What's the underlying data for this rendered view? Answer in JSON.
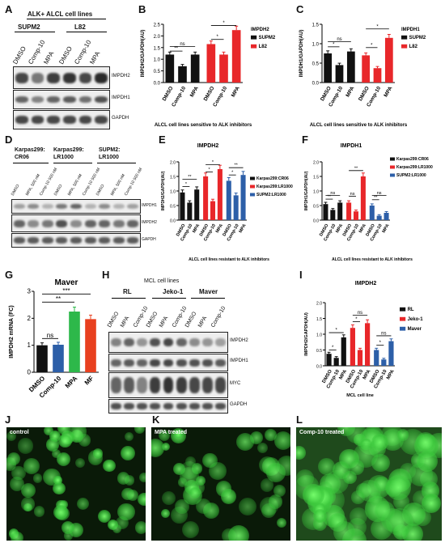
{
  "letters": {
    "A": "A",
    "B": "B",
    "C": "C",
    "D": "D",
    "E": "E",
    "F": "F",
    "G": "G",
    "H": "H",
    "I": "I",
    "J": "J",
    "K": "K",
    "L": "L"
  },
  "panelA": {
    "title": "ALK+ ALCL cell lines",
    "groups": [
      "SUPM2",
      "L82"
    ],
    "lanes": [
      "DMSO",
      "Comp-10",
      "MPA",
      "DMSO",
      "Comp-10",
      "MPA"
    ],
    "rows": [
      "IMPDH2",
      "IMPDH1",
      "GAPDH"
    ]
  },
  "panelD": {
    "groups": [
      "Karpas299:\nCR06",
      "Karpas299:\nLR1000",
      "SUPM2:\nLR1000"
    ],
    "lanes": [
      "DMSO",
      "MPA, 500 nM",
      "Comp-10 500 nM",
      "DMSO",
      "MPA, 500 nM",
      "Comp-10 500 nM",
      "DMSO",
      "MPA, 500 nM",
      "Comp-10 500 nM"
    ],
    "rows": [
      "IMPDH1",
      "IMPDH2",
      "GAPDH"
    ]
  },
  "panelH": {
    "title": "MCL cell lines",
    "groups": [
      "RL",
      "Jeko-1",
      "Maver"
    ],
    "lanes": [
      "DMSO",
      "MPA",
      "Comp-10",
      "DMSO",
      "MPA",
      "Comp-10",
      "DMSO",
      "MPA",
      "Comp-10"
    ],
    "rows": [
      "IMPDH2",
      "IMPDH1",
      "MYC",
      "GAPDH"
    ]
  },
  "panelJ": {
    "label": "control"
  },
  "panelK": {
    "label": "MPA treated"
  },
  "panelL": {
    "label": "Comp-10 treated"
  },
  "colors": {
    "black": "#111111",
    "red": "#e8272a",
    "blue": "#2d5fa8",
    "green": "#2db84a",
    "orange": "#e8401f"
  },
  "chart_data": [
    {
      "id": "B",
      "type": "bar",
      "title": "",
      "ylabel": "IMPDH2/GAPDH(AU)",
      "xlabel": "ALCL cell lines  sensitive to ALK inhibitors",
      "categories": [
        "DMSO",
        "Comp-10",
        "MPA",
        "DMSO",
        "Comp-10",
        "MPA"
      ],
      "values": [
        1.2,
        0.7,
        1.2,
        1.65,
        1.2,
        2.25
      ],
      "colors": [
        "#111111",
        "#111111",
        "#111111",
        "#e8272a",
        "#e8272a",
        "#e8272a"
      ],
      "ylim": [
        0,
        2.5
      ],
      "yticks": [
        0.0,
        0.5,
        1.0,
        1.5,
        2.0,
        2.5
      ],
      "legend": [
        "SUPM2",
        "L82"
      ],
      "legendTitle": "IMPDH2",
      "sig": [
        {
          "a": 0,
          "b": 1,
          "label": "**",
          "level": 1.35
        },
        {
          "a": 0,
          "b": 2,
          "label": "ns",
          "level": 1.55
        },
        {
          "a": 3,
          "b": 4,
          "label": "*",
          "level": 1.85
        },
        {
          "a": 3,
          "b": 5,
          "label": "*",
          "level": 2.45
        }
      ]
    },
    {
      "id": "C",
      "type": "bar",
      "title": "",
      "ylabel": "IMPDH1/GAPDH(AU)",
      "xlabel": "ALCL cell lines  sensitive to ALK inhibitors",
      "categories": [
        "DMSO",
        "Comp-10",
        "MPA",
        "DMSO",
        "Comp-10",
        "MPA"
      ],
      "values": [
        0.75,
        0.45,
        0.8,
        0.7,
        0.37,
        1.15
      ],
      "colors": [
        "#111111",
        "#111111",
        "#111111",
        "#e8272a",
        "#e8272a",
        "#e8272a"
      ],
      "ylim": [
        0,
        1.5
      ],
      "yticks": [
        0.0,
        0.5,
        1.0,
        1.5
      ],
      "legend": [
        "SUPM2",
        "L82"
      ],
      "legendTitle": "IMPDH1",
      "sig": [
        {
          "a": 0,
          "b": 1,
          "label": "*",
          "level": 0.92
        },
        {
          "a": 0,
          "b": 2,
          "label": "ns",
          "level": 1.05
        },
        {
          "a": 3,
          "b": 4,
          "label": "*",
          "level": 0.9
        },
        {
          "a": 3,
          "b": 5,
          "label": "*",
          "level": 1.38
        }
      ]
    },
    {
      "id": "E",
      "type": "bar",
      "title": "IMPDH2",
      "ylabel": "IMPDH2/GAPDH(AU)",
      "xlabel": "ALCL cell lines resistant to ALK inhibitors",
      "categories": [
        "DMSO",
        "Comp-10",
        "MPA",
        "DMSO",
        "Comp-10",
        "MPA",
        "DMSO",
        "Comp-10",
        "MPA"
      ],
      "values": [
        0.95,
        0.6,
        1.05,
        1.5,
        0.65,
        1.75,
        1.35,
        0.85,
        1.55
      ],
      "colors": [
        "#111111",
        "#111111",
        "#111111",
        "#e8272a",
        "#e8272a",
        "#e8272a",
        "#2d5fa8",
        "#2d5fa8",
        "#2d5fa8"
      ],
      "ylim": [
        0,
        2.0
      ],
      "yticks": [
        0.0,
        0.5,
        1.0,
        1.5,
        2.0
      ],
      "legend": [
        "Karpas299:CR06",
        "Karpas299:LR1000",
        "SUPM2:LR1000"
      ],
      "sig": [
        {
          "a": 0,
          "b": 1,
          "label": "*",
          "level": 1.15
        },
        {
          "a": 0,
          "b": 2,
          "label": "**",
          "level": 1.4
        },
        {
          "a": 3,
          "b": 4,
          "label": "*",
          "level": 1.65
        },
        {
          "a": 3,
          "b": 5,
          "label": "*",
          "level": 1.9
        },
        {
          "a": 6,
          "b": 7,
          "label": "*",
          "level": 1.55
        },
        {
          "a": 6,
          "b": 8,
          "label": "**",
          "level": 1.8
        }
      ]
    },
    {
      "id": "F",
      "type": "bar",
      "title": "IMPDH1",
      "ylabel": "IMPDH1/GAPDH(AU)",
      "xlabel": "ALCL cell lines resistant to ALK inhibitors",
      "categories": [
        "DMSO",
        "Comp-10",
        "MPA",
        "DMSO",
        "Comp-10",
        "MPA",
        "DMSO",
        "Comp-10",
        "MPA"
      ],
      "values": [
        0.55,
        0.35,
        0.6,
        0.6,
        0.3,
        1.5,
        0.5,
        0.15,
        0.25
      ],
      "colors": [
        "#111111",
        "#111111",
        "#111111",
        "#e8272a",
        "#e8272a",
        "#e8272a",
        "#2d5fa8",
        "#2d5fa8",
        "#2d5fa8"
      ],
      "ylim": [
        0,
        2.0
      ],
      "yticks": [
        0.0,
        0.5,
        1.0,
        1.5,
        2.0
      ],
      "legend": [
        "Karpas299:CR06",
        "Karpas299:LR1000",
        "SUPM2:LR1000"
      ],
      "sig": [
        {
          "a": 0,
          "b": 1,
          "label": "**",
          "level": 0.72
        },
        {
          "a": 0,
          "b": 2,
          "label": "ns",
          "level": 0.85
        },
        {
          "a": 3,
          "b": 4,
          "label": "ns",
          "level": 0.82
        },
        {
          "a": 3,
          "b": 5,
          "label": "**",
          "level": 1.7
        },
        {
          "a": 6,
          "b": 7,
          "label": "**",
          "level": 0.7
        },
        {
          "a": 6,
          "b": 8,
          "label": "ns",
          "level": 0.85
        }
      ]
    },
    {
      "id": "G",
      "type": "bar",
      "title": "Maver",
      "ylabel": "IMPDH2  mRNA (FC)",
      "xlabel": "",
      "categories": [
        "DMSO",
        "Comp-10",
        "MPA",
        "MF"
      ],
      "values": [
        1.0,
        1.02,
        2.25,
        1.97
      ],
      "colors": [
        "#111111",
        "#2d5fa8",
        "#2db84a",
        "#e8401f"
      ],
      "ylim": [
        0,
        3
      ],
      "yticks": [
        0,
        1,
        2,
        3
      ],
      "legend": [],
      "sig": [
        {
          "a": 0,
          "b": 1,
          "label": "ns",
          "level": 1.25
        },
        {
          "a": 0,
          "b": 2,
          "label": "**",
          "level": 2.6
        },
        {
          "a": 0,
          "b": 3,
          "label": "***",
          "level": 2.9
        }
      ]
    },
    {
      "id": "I",
      "type": "bar",
      "title": "IMPDH2",
      "ylabel": "IMPDH2/GAPDH(AU)",
      "xlabel": "MCL cell line",
      "categories": [
        "DMSO",
        "Comp-10",
        "MPA",
        "DMSO",
        "Comp-10",
        "MPA",
        "DMSO",
        "Comp-10",
        "MPA"
      ],
      "values": [
        0.38,
        0.25,
        0.9,
        1.2,
        0.5,
        1.35,
        0.5,
        0.2,
        0.78
      ],
      "colors": [
        "#111111",
        "#111111",
        "#111111",
        "#e8272a",
        "#e8272a",
        "#e8272a",
        "#2d5fa8",
        "#2d5fa8",
        "#2d5fa8"
      ],
      "ylim": [
        0,
        2.0
      ],
      "yticks": [
        0.0,
        0.5,
        1.0,
        1.5,
        2.0
      ],
      "legend": [
        "RL",
        "Jeko-1",
        "Maver"
      ],
      "sig": [
        {
          "a": 0,
          "b": 1,
          "label": "*",
          "level": 0.5
        },
        {
          "a": 0,
          "b": 2,
          "label": "*",
          "level": 1.05
        },
        {
          "a": 3,
          "b": 4,
          "label": "*",
          "level": 1.4
        },
        {
          "a": 3,
          "b": 5,
          "label": "ns",
          "level": 1.6
        },
        {
          "a": 6,
          "b": 7,
          "label": "*",
          "level": 0.65
        },
        {
          "a": 6,
          "b": 8,
          "label": "ns",
          "level": 0.95
        }
      ]
    }
  ]
}
